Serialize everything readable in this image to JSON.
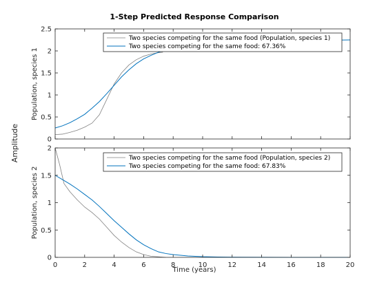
{
  "figure": {
    "title": "1-Step Predicted Response Comparison",
    "ylabel": "Amplitude",
    "xlabel": "Time (years)"
  },
  "colors": {
    "background": "#ffffff",
    "axes_border": "#262626",
    "measured": "#808080",
    "predicted": "#0072BD"
  },
  "chart_data": [
    {
      "type": "line",
      "panel": "top",
      "ylabel": "Population, species 1",
      "xlim": [
        0,
        20
      ],
      "ylim": [
        0,
        2.5
      ],
      "xticks": [
        0,
        2,
        4,
        6,
        8,
        10,
        12,
        14,
        16,
        18,
        20
      ],
      "xtick_labels": [],
      "yticks": [
        0,
        0.5,
        1,
        1.5,
        2,
        2.5
      ],
      "ytick_labels": [
        "0",
        "0.5",
        "1",
        "1.5",
        "2",
        "2.5"
      ],
      "legend_position": "top-right",
      "grid": false,
      "series": [
        {
          "name": "Two species competing for the same food (Population, species 1)",
          "role": "measured",
          "x": [
            0,
            0.5,
            1,
            1.5,
            2,
            2.5,
            3,
            3.5,
            4,
            4.5,
            5,
            5.5,
            6,
            6.5,
            7,
            7.3
          ],
          "y": [
            0.1,
            0.11,
            0.15,
            0.2,
            0.27,
            0.36,
            0.55,
            0.9,
            1.25,
            1.5,
            1.68,
            1.8,
            1.88,
            1.93,
            1.96,
            1.97
          ]
        },
        {
          "name": "Two species competing for the same food: 67.36%",
          "role": "predicted",
          "x": [
            0,
            0.5,
            1,
            1.5,
            2,
            2.5,
            3,
            3.5,
            4,
            4.5,
            5,
            5.5,
            6,
            6.5,
            7,
            7.5,
            8,
            9,
            10,
            11,
            12,
            14,
            16,
            18,
            20
          ],
          "y": [
            0.25,
            0.3,
            0.37,
            0.46,
            0.56,
            0.7,
            0.85,
            1.03,
            1.22,
            1.41,
            1.57,
            1.71,
            1.82,
            1.9,
            1.97,
            2.02,
            2.06,
            2.12,
            2.16,
            2.18,
            2.2,
            2.22,
            2.23,
            2.24,
            2.25
          ]
        }
      ]
    },
    {
      "type": "line",
      "panel": "bottom",
      "ylabel": "Population, species 2",
      "xlim": [
        0,
        20
      ],
      "ylim": [
        0,
        2
      ],
      "xticks": [
        0,
        2,
        4,
        6,
        8,
        10,
        12,
        14,
        16,
        18,
        20
      ],
      "xtick_labels": [
        "0",
        "2",
        "4",
        "6",
        "8",
        "10",
        "12",
        "14",
        "16",
        "18",
        "20"
      ],
      "yticks": [
        0,
        0.5,
        1,
        1.5,
        2
      ],
      "ytick_labels": [
        "0",
        "0.5",
        "1",
        "1.5",
        "2"
      ],
      "legend_position": "top-right",
      "grid": false,
      "series": [
        {
          "name": "Two species competing for the same food (Population, species 2)",
          "role": "measured",
          "x": [
            0,
            0.3,
            0.6,
            1,
            1.5,
            2,
            2.5,
            3,
            3.5,
            4,
            4.5,
            5,
            5.5,
            6,
            6.5,
            7,
            7.5
          ],
          "y": [
            2.0,
            1.7,
            1.35,
            1.2,
            1.05,
            0.92,
            0.82,
            0.7,
            0.55,
            0.4,
            0.28,
            0.18,
            0.1,
            0.05,
            0.02,
            0.01,
            0.0
          ]
        },
        {
          "name": "Two species competing for the same food: 67.83%",
          "role": "predicted",
          "x": [
            0,
            0.5,
            1,
            1.5,
            2,
            2.5,
            3,
            3.5,
            4,
            4.5,
            5,
            5.5,
            6,
            6.5,
            7,
            7.5,
            8,
            9,
            10,
            11,
            12,
            14,
            16,
            18,
            20
          ],
          "y": [
            1.5,
            1.42,
            1.34,
            1.25,
            1.15,
            1.05,
            0.93,
            0.8,
            0.67,
            0.55,
            0.43,
            0.32,
            0.23,
            0.16,
            0.1,
            0.07,
            0.05,
            0.025,
            0.012,
            0.006,
            0.003,
            0.001,
            0.0,
            0.0,
            0.0
          ]
        }
      ]
    }
  ]
}
